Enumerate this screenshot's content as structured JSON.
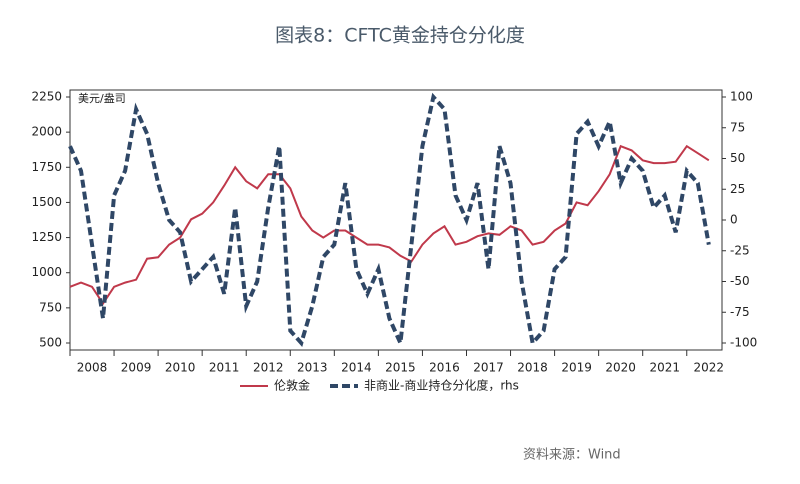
{
  "chart_data": {
    "type": "line",
    "title": "图表8：CFTC黄金持仓分化度",
    "ylabel": "美元/盎司",
    "source": "资料来源：Wind",
    "x": [
      2008,
      2008.25,
      2008.5,
      2008.75,
      2009,
      2009.25,
      2009.5,
      2009.75,
      2010,
      2010.25,
      2010.5,
      2010.75,
      2011,
      2011.25,
      2011.5,
      2011.75,
      2012,
      2012.25,
      2012.5,
      2012.75,
      2013,
      2013.25,
      2013.5,
      2013.75,
      2014,
      2014.25,
      2014.5,
      2014.75,
      2015,
      2015.25,
      2015.5,
      2015.75,
      2016,
      2016.25,
      2016.5,
      2016.75,
      2017,
      2017.25,
      2017.5,
      2017.75,
      2018,
      2018.25,
      2018.5,
      2018.75,
      2019,
      2019.25,
      2019.5,
      2019.75,
      2020,
      2020.25,
      2020.5,
      2020.75,
      2021,
      2021.25,
      2021.5,
      2021.75,
      2022,
      2022.25,
      2022.5
    ],
    "xlim": [
      2008,
      2022.8
    ],
    "xticks": [
      2008,
      2009,
      2010,
      2011,
      2012,
      2013,
      2014,
      2015,
      2016,
      2017,
      2018,
      2019,
      2020,
      2021,
      2022
    ],
    "ylim": [
      500,
      2250
    ],
    "yticks": [
      500,
      750,
      1000,
      1250,
      1500,
      1750,
      2000,
      2250
    ],
    "y2lim": [
      -100,
      100
    ],
    "y2ticks": [
      -100,
      -75,
      -50,
      -25,
      0,
      25,
      50,
      75,
      100
    ],
    "series": [
      {
        "name": "伦敦金",
        "color": "#c0394b",
        "values": [
          900,
          930,
          900,
          780,
          900,
          930,
          950,
          1100,
          1110,
          1200,
          1250,
          1380,
          1420,
          1500,
          1620,
          1750,
          1650,
          1600,
          1700,
          1700,
          1600,
          1400,
          1300,
          1250,
          1300,
          1300,
          1250,
          1200,
          1200,
          1180,
          1120,
          1080,
          1200,
          1280,
          1330,
          1200,
          1220,
          1260,
          1280,
          1270,
          1330,
          1300,
          1200,
          1220,
          1300,
          1350,
          1500,
          1480,
          1580,
          1700,
          1900,
          1870,
          1800,
          1780,
          1780,
          1790,
          1900,
          1850,
          1800
        ]
      },
      {
        "name": "非商业-商业持仓分化度，rhs",
        "color": "#2f4766",
        "axis": "y2",
        "dashed": true,
        "values": [
          60,
          40,
          -20,
          -80,
          20,
          40,
          90,
          70,
          30,
          0,
          -10,
          -50,
          -40,
          -30,
          -60,
          10,
          -70,
          -50,
          10,
          60,
          -90,
          -100,
          -70,
          -30,
          -20,
          30,
          -40,
          -60,
          -40,
          -80,
          -100,
          -20,
          60,
          100,
          90,
          20,
          0,
          30,
          -40,
          60,
          30,
          -50,
          -100,
          -90,
          -40,
          -30,
          70,
          80,
          60,
          80,
          30,
          50,
          40,
          10,
          20,
          -10,
          40,
          30,
          -20
        ]
      }
    ]
  }
}
